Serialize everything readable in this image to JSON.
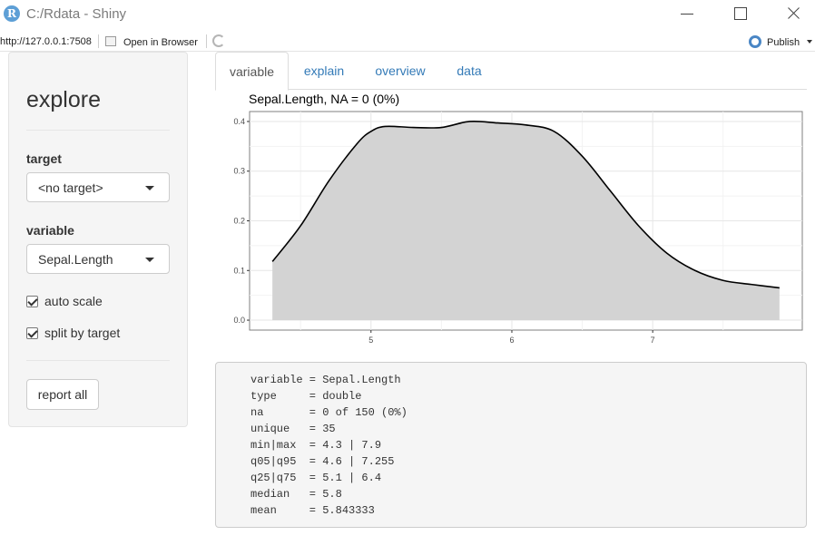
{
  "window": {
    "title": "C:/Rdata - Shiny",
    "logo_letter": "R"
  },
  "toolbar": {
    "url": "http://127.0.0.1:7508",
    "open_in_browser": "Open in Browser",
    "publish": "Publish"
  },
  "sidebar": {
    "title": "explore",
    "target_label": "target",
    "target_value": "<no target>",
    "variable_label": "variable",
    "variable_value": "Sepal.Length",
    "auto_scale_label": "auto scale",
    "auto_scale_checked": true,
    "split_label": "split by target",
    "split_checked": true,
    "report_button": "report all"
  },
  "tabs": [
    {
      "label": "variable",
      "active": true
    },
    {
      "label": "explain",
      "active": false
    },
    {
      "label": "overview",
      "active": false
    },
    {
      "label": "data",
      "active": false
    }
  ],
  "chart_data": {
    "type": "area",
    "title": "Sepal.Length, NA = 0 (0%)",
    "xlabel": "",
    "ylabel": "",
    "xlim": [
      4.3,
      7.9
    ],
    "ylim": [
      0,
      0.42
    ],
    "x_ticks": [
      "5",
      "6",
      "7"
    ],
    "y_ticks": [
      "0.0",
      "0.1",
      "0.2",
      "0.3",
      "0.4"
    ],
    "grid": true,
    "fill_color": "#d3d3d3",
    "line_color": "#000000",
    "x": [
      4.3,
      4.5,
      4.7,
      4.9,
      5.0,
      5.1,
      5.3,
      5.5,
      5.7,
      5.9,
      6.1,
      6.3,
      6.5,
      6.7,
      6.9,
      7.1,
      7.3,
      7.5,
      7.7,
      7.9
    ],
    "values": [
      0.118,
      0.19,
      0.28,
      0.355,
      0.38,
      0.39,
      0.388,
      0.388,
      0.4,
      0.397,
      0.393,
      0.38,
      0.33,
      0.26,
      0.19,
      0.135,
      0.1,
      0.08,
      0.072,
      0.065
    ]
  },
  "summary": {
    "lines": [
      "variable = Sepal.Length",
      "type     = double",
      "na       = 0 of 150 (0%)",
      "unique   = 35",
      "min|max  = 4.3 | 7.9",
      "q05|q95  = 4.6 | 7.255",
      "q25|q75  = 5.1 | 6.4",
      "median   = 5.8",
      "mean     = 5.843333"
    ]
  }
}
